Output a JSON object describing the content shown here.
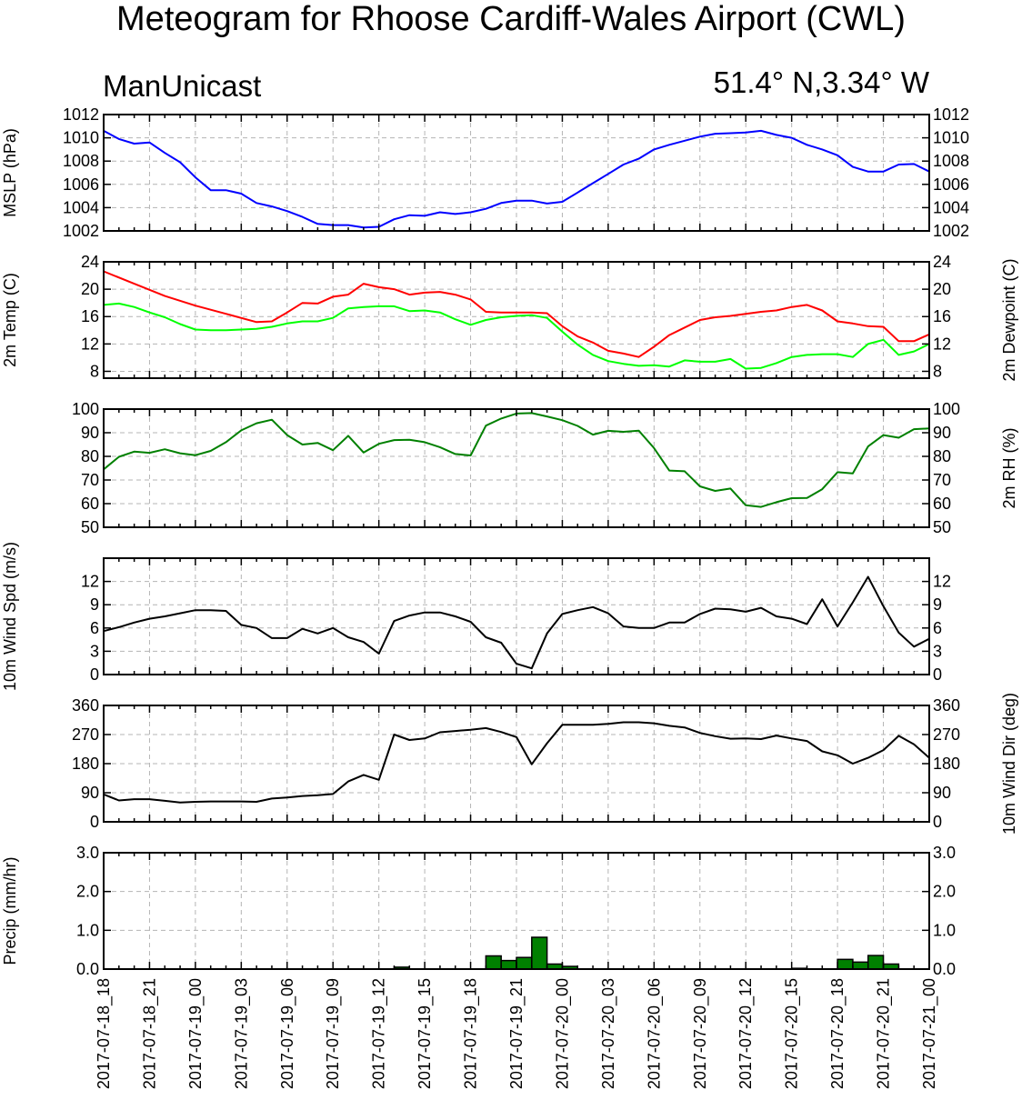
{
  "title": "Meteogram for Rhoose Cardiff-Wales Airport (CWL)",
  "subtitle_left": "ManUnicast",
  "subtitle_right": "51.4° N,3.34° W",
  "x_tick_labels": [
    "2017-07-18_18",
    "2017-07-18_21",
    "2017-07-19_00",
    "2017-07-19_03",
    "2017-07-19_06",
    "2017-07-19_09",
    "2017-07-19_12",
    "2017-07-19_15",
    "2017-07-19_18",
    "2017-07-19_21",
    "2017-07-20_00",
    "2017-07-20_03",
    "2017-07-20_06",
    "2017-07-20_09",
    "2017-07-20_12",
    "2017-07-20_15",
    "2017-07-20_18",
    "2017-07-20_21",
    "2017-07-21_00"
  ],
  "colors": {
    "mslp": "#0000ff",
    "temp": "#ff0000",
    "dewpoint": "#00ff00",
    "rh": "#008000",
    "wind": "#000000",
    "precip_fill": "#008000",
    "grid": "#b4b4b4"
  },
  "chart_data": [
    {
      "type": "line",
      "ylabel_left": "MSLP (hPa)",
      "ylabel_right": "",
      "xlim": [
        0,
        54
      ],
      "ylim": [
        1002,
        1012
      ],
      "yticks": [
        1002,
        1004,
        1006,
        1008,
        1010,
        1012
      ],
      "ytick_labels": [
        "1002",
        "1004",
        "1006",
        "1008",
        "1010",
        "1012"
      ],
      "grid": true,
      "series": [
        {
          "color": "#0000ff",
          "x": [
            0,
            1,
            2,
            3,
            4,
            5,
            6,
            7,
            8,
            9,
            10,
            11,
            12,
            13,
            14,
            15,
            16,
            17,
            18,
            19,
            20,
            21,
            22,
            23,
            24,
            25,
            26,
            27,
            28,
            29,
            30,
            31,
            32,
            33,
            34,
            35,
            36,
            37,
            38,
            39,
            40,
            41,
            42,
            43,
            44,
            45,
            46,
            47,
            48,
            49,
            50,
            51,
            52,
            53,
            54
          ],
          "values": [
            1010.6,
            1009.9,
            1009.5,
            1009.6,
            1008.7,
            1007.9,
            1006.6,
            1005.5,
            1005.5,
            1005.2,
            1004.4,
            1004.1,
            1003.7,
            1003.2,
            1002.6,
            1002.5,
            1002.5,
            1002.3,
            1002.35,
            1003.0,
            1003.35,
            1003.3,
            1003.6,
            1003.45,
            1003.6,
            1003.9,
            1004.4,
            1004.6,
            1004.6,
            1004.35,
            1004.5,
            1005.3,
            1006.1,
            1006.9,
            1007.7,
            1008.2,
            1009.0,
            1009.4,
            1009.75,
            1010.1,
            1010.35,
            1010.4,
            1010.45,
            1010.6,
            1010.25,
            1010.0,
            1009.4,
            1009.0,
            1008.5,
            1007.5,
            1007.1,
            1007.1,
            1007.7,
            1007.75,
            1007.1
          ]
        }
      ]
    },
    {
      "type": "line",
      "ylabel_left": "2m Temp (C)",
      "ylabel_right": "2m Dewpoint (C)",
      "xlim": [
        0,
        54
      ],
      "ylim": [
        7,
        24
      ],
      "yticks": [
        8,
        12,
        16,
        20,
        24
      ],
      "ytick_labels": [
        "8",
        "12",
        "16",
        "20",
        "24"
      ],
      "grid": true,
      "series": [
        {
          "color": "#ff0000",
          "x": [
            0,
            2,
            4,
            6,
            8,
            10,
            11,
            12,
            13,
            14,
            15,
            16,
            17,
            18,
            19,
            20,
            21,
            22,
            23,
            24,
            25,
            26,
            27,
            28,
            29,
            30,
            31,
            32,
            33,
            34,
            35,
            36,
            37,
            38,
            39,
            40,
            41,
            42,
            43,
            44,
            45,
            46,
            47,
            48,
            49,
            50,
            51,
            52,
            53,
            54
          ],
          "values": [
            22.6,
            20.8,
            19.0,
            17.6,
            16.4,
            15.2,
            15.3,
            16.6,
            18.0,
            17.9,
            18.9,
            19.2,
            20.8,
            20.3,
            20.0,
            19.2,
            19.5,
            19.6,
            19.2,
            18.5,
            16.7,
            16.6,
            16.6,
            16.6,
            16.5,
            14.6,
            13.1,
            12.2,
            11.0,
            10.6,
            10.1,
            11.6,
            13.3,
            14.4,
            15.5,
            15.9,
            16.1,
            16.4,
            16.7,
            16.9,
            17.4,
            17.7,
            16.9,
            15.3,
            15.0,
            14.6,
            14.5,
            12.4,
            12.4,
            13.4
          ]
        },
        {
          "color": "#00ff00",
          "x": [
            0,
            1,
            2,
            3,
            4,
            5,
            6,
            7,
            8,
            9,
            10,
            11,
            12,
            13,
            14,
            15,
            16,
            17,
            18,
            19,
            20,
            21,
            22,
            23,
            24,
            25,
            26,
            27,
            28,
            29,
            30,
            31,
            32,
            33,
            34,
            35,
            36,
            37,
            38,
            39,
            40,
            41,
            42,
            43,
            44,
            45,
            46,
            47,
            48,
            49,
            50,
            51,
            52,
            53,
            54
          ],
          "values": [
            17.7,
            17.9,
            17.4,
            16.6,
            15.9,
            14.9,
            14.1,
            14.0,
            14.0,
            14.1,
            14.2,
            14.5,
            15.0,
            15.3,
            15.3,
            15.8,
            17.2,
            17.4,
            17.5,
            17.5,
            16.8,
            16.9,
            16.6,
            15.6,
            14.8,
            15.5,
            15.9,
            16.1,
            16.2,
            15.8,
            13.8,
            11.9,
            10.4,
            9.5,
            9.1,
            8.8,
            8.9,
            8.7,
            9.6,
            9.4,
            9.4,
            9.8,
            8.4,
            8.5,
            9.2,
            10.1,
            10.4,
            10.5,
            10.5,
            10.1,
            12.0,
            12.6,
            10.4,
            10.9,
            12.0
          ]
        }
      ]
    },
    {
      "type": "line",
      "ylabel_left": "",
      "ylabel_right": "2m RH (%)",
      "xlim": [
        0,
        54
      ],
      "ylim": [
        50,
        100
      ],
      "yticks": [
        50,
        60,
        70,
        80,
        90,
        100
      ],
      "ytick_labels": [
        "50",
        "60",
        "70",
        "80",
        "90",
        "100"
      ],
      "grid": true,
      "series": [
        {
          "color": "#008000",
          "x": [
            0,
            1,
            2,
            3,
            4,
            5,
            6,
            7,
            8,
            9,
            10,
            11,
            12,
            13,
            14,
            15,
            16,
            17,
            18,
            19,
            20,
            21,
            22,
            23,
            24,
            25,
            26,
            27,
            28,
            29,
            30,
            31,
            32,
            33,
            34,
            35,
            36,
            37,
            38,
            39,
            40,
            41,
            42,
            43,
            44,
            45,
            46,
            47,
            48,
            49,
            50,
            51,
            52,
            53,
            54
          ],
          "values": [
            74.5,
            79.8,
            82.0,
            81.5,
            83.0,
            81.3,
            80.5,
            82.3,
            86.0,
            91.0,
            94.0,
            95.5,
            89.0,
            85.0,
            85.7,
            82.6,
            88.7,
            81.6,
            85.3,
            86.9,
            87.0,
            86.0,
            83.9,
            81.0,
            80.4,
            93.0,
            96.0,
            98.1,
            98.3,
            96.9,
            95.3,
            92.9,
            89.2,
            90.8,
            90.4,
            90.9,
            83.5,
            74.0,
            73.7,
            67.3,
            65.4,
            66.4,
            59.3,
            58.6,
            60.6,
            62.3,
            62.4,
            66.1,
            73.3,
            72.8,
            84.2,
            89.0,
            87.9,
            91.5,
            91.8
          ]
        }
      ]
    },
    {
      "type": "line",
      "ylabel_left": "10m Wind Spd (m/s)",
      "ylabel_right": "",
      "xlim": [
        0,
        54
      ],
      "ylim": [
        0,
        15
      ],
      "yticks": [
        0,
        3,
        6,
        9,
        12
      ],
      "ytick_labels": [
        "0",
        "3",
        "6",
        "9",
        "12"
      ],
      "grid": true,
      "series": [
        {
          "color": "#000000",
          "x": [
            0,
            1,
            2,
            3,
            4,
            5,
            6,
            7,
            8,
            9,
            10,
            11,
            12,
            13,
            14,
            15,
            16,
            17,
            18,
            19,
            20,
            21,
            22,
            23,
            24,
            25,
            26,
            27,
            28,
            29,
            30,
            31,
            32,
            33,
            34,
            35,
            36,
            37,
            38,
            39,
            40,
            41,
            42,
            43,
            44,
            45,
            46,
            47,
            48,
            49,
            50,
            51,
            52,
            53,
            54
          ],
          "values": [
            5.6,
            6.1,
            6.7,
            7.2,
            7.5,
            7.9,
            8.3,
            8.3,
            8.2,
            6.4,
            6.0,
            4.7,
            4.7,
            5.9,
            5.3,
            6.0,
            4.8,
            4.2,
            2.7,
            6.9,
            7.6,
            8.0,
            8.0,
            7.5,
            6.8,
            4.8,
            4.1,
            1.4,
            0.8,
            5.3,
            7.8,
            8.3,
            8.7,
            7.9,
            6.2,
            6.0,
            6.0,
            6.7,
            6.7,
            7.8,
            8.5,
            8.4,
            8.1,
            8.6,
            7.5,
            7.2,
            6.5,
            9.7,
            6.2,
            9.3,
            12.6,
            8.8,
            5.4,
            3.6,
            4.6
          ]
        }
      ]
    },
    {
      "type": "line",
      "ylabel_left": "",
      "ylabel_right": "10m Wind Dir (deg)",
      "xlim": [
        0,
        54
      ],
      "ylim": [
        0,
        360
      ],
      "yticks": [
        0,
        90,
        180,
        270,
        360
      ],
      "ytick_labels": [
        "0",
        "90",
        "180",
        "270",
        "360"
      ],
      "grid": true,
      "series": [
        {
          "color": "#000000",
          "x": [
            0,
            1,
            2,
            3,
            4,
            5,
            6,
            7,
            8,
            9,
            10,
            11,
            12,
            13,
            14,
            15,
            16,
            17,
            18,
            19,
            20,
            21,
            22,
            23,
            24,
            25,
            26,
            27,
            28,
            29,
            30,
            31,
            32,
            33,
            34,
            35,
            36,
            37,
            38,
            39,
            40,
            41,
            42,
            43,
            44,
            45,
            46,
            47,
            48,
            49,
            50,
            51,
            52,
            53,
            54
          ],
          "values": [
            85,
            66,
            70,
            70,
            65,
            60,
            62,
            63,
            63,
            63,
            62,
            72,
            75,
            80,
            82,
            86,
            125,
            145,
            130,
            270,
            253,
            258,
            277,
            281,
            285,
            290,
            278,
            262,
            178,
            243,
            300,
            300,
            300,
            303,
            308,
            308,
            305,
            297,
            292,
            275,
            265,
            257,
            258,
            256,
            267,
            258,
            250,
            218,
            206,
            180,
            198,
            222,
            266,
            240,
            198
          ]
        }
      ]
    },
    {
      "type": "bar",
      "ylabel_left": "Precip (mm/hr)",
      "ylabel_right": "",
      "xlim": [
        0,
        54
      ],
      "ylim": [
        0,
        3
      ],
      "yticks": [
        0,
        1,
        2,
        3
      ],
      "ytick_labels": [
        "0.0",
        "1.0",
        "2.0",
        "3.0"
      ],
      "grid": true,
      "series": [
        {
          "color": "#008000",
          "x": [
            19,
            25,
            26,
            27,
            28,
            29,
            30,
            45,
            48,
            49,
            50,
            51
          ],
          "values": [
            0.05,
            0.34,
            0.22,
            0.3,
            0.82,
            0.13,
            0.07,
            0.02,
            0.25,
            0.18,
            0.35,
            0.13
          ]
        }
      ]
    }
  ]
}
